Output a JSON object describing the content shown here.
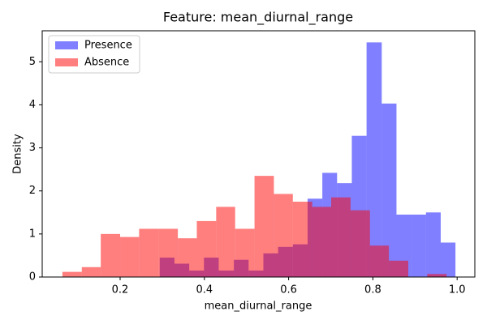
{
  "chart_data": {
    "type": "histogram",
    "title": "Feature: mean_diurnal_range",
    "xlabel": "mean_diurnal_range",
    "ylabel": "Density",
    "series": [
      {
        "name": "Presence",
        "color": "#0000ff",
        "alpha": 0.5,
        "bins": [
          0.294,
          0.329,
          0.364,
          0.399,
          0.434,
          0.47,
          0.505,
          0.54,
          0.575,
          0.61,
          0.645,
          0.68,
          0.715,
          0.75,
          0.785,
          0.821,
          0.856,
          0.891,
          0.926,
          0.961,
          0.996
        ],
        "values": [
          0.45,
          0.31,
          0.15,
          0.45,
          0.15,
          0.4,
          0.15,
          0.55,
          0.7,
          0.76,
          1.82,
          2.42,
          2.18,
          3.28,
          5.45,
          4.03,
          1.45,
          1.45,
          1.5,
          0.8
        ]
      },
      {
        "name": "Absence",
        "color": "#ff0000",
        "alpha": 0.5,
        "bins": [
          0.063,
          0.109,
          0.154,
          0.2,
          0.245,
          0.291,
          0.337,
          0.382,
          0.428,
          0.473,
          0.519,
          0.565,
          0.61,
          0.656,
          0.701,
          0.747,
          0.793,
          0.838,
          0.884,
          0.929,
          0.975
        ],
        "values": [
          0.12,
          0.23,
          1.0,
          0.93,
          1.12,
          1.12,
          0.9,
          1.3,
          1.63,
          1.12,
          2.35,
          1.93,
          1.75,
          1.63,
          1.85,
          1.55,
          0.73,
          0.38,
          0,
          0.07
        ]
      }
    ],
    "xlim": [
      0.015,
      1.042
    ],
    "ylim": [
      0,
      5.72
    ],
    "xticks": [
      0.2,
      0.4,
      0.6,
      0.8,
      {
        "value": 1,
        "label": "1.0"
      }
    ],
    "yticks": [
      0,
      1,
      2,
      3,
      4,
      5
    ],
    "legend": "upper left"
  }
}
